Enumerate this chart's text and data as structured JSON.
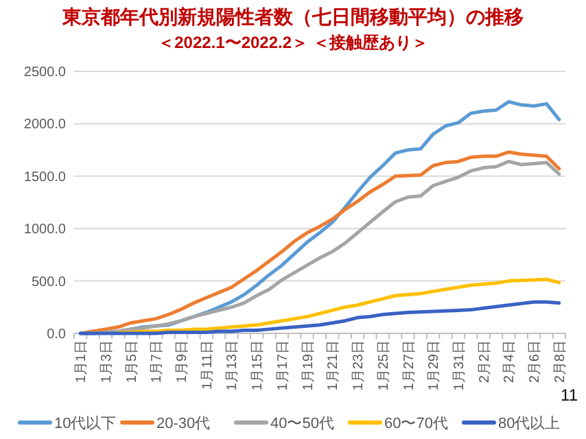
{
  "chart_data": {
    "type": "line",
    "title": "東京都年代別新規陽性者数（七日間移動平均）の推移",
    "subtitle": "＜2022.1〜2022.2＞ ＜接触歴あり＞",
    "categories": [
      "1月1日",
      null,
      "1月3日",
      null,
      "1月5日",
      null,
      "1月7日",
      null,
      "1月9日",
      null,
      "1月11日",
      null,
      "1月13日",
      null,
      "1月15日",
      null,
      "1月17日",
      null,
      "1月19日",
      null,
      "1月21日",
      null,
      "1月23日",
      null,
      "1月25日",
      null,
      "1月27日",
      null,
      "1月29日",
      null,
      "1月31日",
      null,
      "2月2日",
      null,
      "2月4日",
      null,
      "2月6日",
      null,
      "2月8日"
    ],
    "series": [
      {
        "name": "10代以下",
        "color": "#5b9bd5",
        "values": [
          0,
          0,
          10,
          20,
          40,
          60,
          70,
          80,
          120,
          160,
          200,
          250,
          300,
          370,
          460,
          560,
          650,
          760,
          870,
          960,
          1060,
          1200,
          1350,
          1490,
          1600,
          1720,
          1750,
          1760,
          1900,
          1980,
          2010,
          2100,
          2120,
          2130,
          2210,
          2180,
          2170,
          2190,
          2040
        ]
      },
      {
        "name": "20-30代",
        "color": "#ed7d31",
        "values": [
          0,
          20,
          40,
          60,
          100,
          120,
          140,
          180,
          230,
          290,
          340,
          390,
          440,
          520,
          600,
          690,
          780,
          880,
          960,
          1020,
          1090,
          1180,
          1260,
          1350,
          1420,
          1500,
          1505,
          1510,
          1600,
          1630,
          1640,
          1680,
          1690,
          1690,
          1730,
          1710,
          1700,
          1690,
          1570
        ]
      },
      {
        "name": "40〜50代",
        "color": "#a5a5a5",
        "values": [
          0,
          0,
          10,
          20,
          40,
          50,
          70,
          90,
          120,
          160,
          190,
          220,
          250,
          290,
          360,
          420,
          510,
          580,
          650,
          720,
          780,
          860,
          960,
          1060,
          1160,
          1255,
          1300,
          1310,
          1410,
          1450,
          1490,
          1550,
          1580,
          1590,
          1640,
          1610,
          1620,
          1630,
          1520
        ]
      },
      {
        "name": "60〜70代",
        "color": "#ffc000",
        "values": [
          null,
          null,
          null,
          10,
          10,
          20,
          20,
          30,
          30,
          40,
          40,
          50,
          60,
          70,
          80,
          100,
          120,
          140,
          160,
          190,
          220,
          250,
          270,
          300,
          330,
          360,
          370,
          380,
          400,
          420,
          440,
          460,
          470,
          480,
          500,
          505,
          510,
          515,
          485
        ]
      },
      {
        "name": "80代以上",
        "color": "#3a62c4",
        "values": [
          0,
          0,
          0,
          0,
          0,
          0,
          0,
          10,
          10,
          10,
          10,
          20,
          20,
          30,
          30,
          40,
          50,
          60,
          70,
          80,
          100,
          120,
          150,
          160,
          180,
          190,
          200,
          205,
          210,
          215,
          220,
          225,
          240,
          255,
          270,
          285,
          300,
          300,
          290
        ]
      }
    ],
    "ylim": [
      0,
      2500
    ],
    "yticks": [
      {
        "value": 0,
        "label": "0.0"
      },
      {
        "value": 500,
        "label": "500.0"
      },
      {
        "value": 1000,
        "label": "1000.0"
      },
      {
        "value": 1500,
        "label": "1500.0"
      },
      {
        "value": 2000,
        "label": "2000.0"
      },
      {
        "value": 2500,
        "label": "2500.0"
      }
    ],
    "grid": "y",
    "legend": "bottom",
    "marker": "none",
    "line_style": "solid",
    "annotations": [
      "11"
    ]
  }
}
